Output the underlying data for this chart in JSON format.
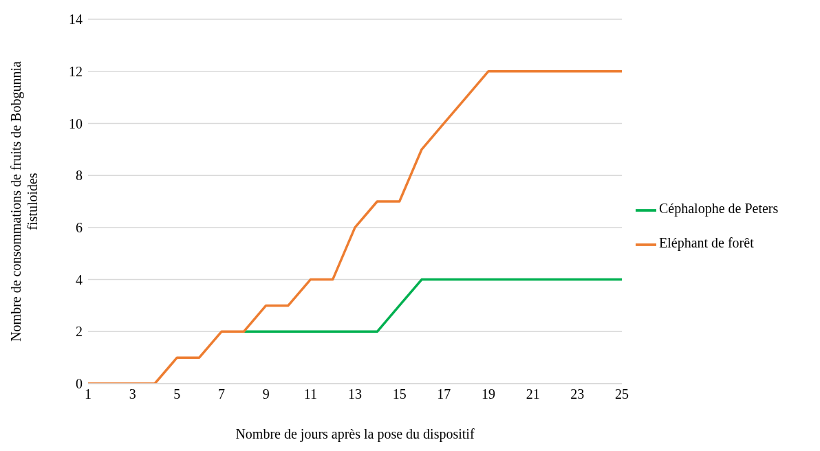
{
  "chart_data": {
    "type": "line",
    "xlabel": "Nombre de jours après la pose du dispositif",
    "ylabel": "Nombre de consommations de fruits de Bobgunnia fistuloides",
    "x": [
      1,
      2,
      3,
      4,
      5,
      6,
      7,
      8,
      9,
      10,
      11,
      12,
      13,
      14,
      15,
      16,
      17,
      18,
      19,
      20,
      21,
      22,
      23,
      24,
      25
    ],
    "series": [
      {
        "name": "Céphalophe de Peters",
        "color": "#00b050",
        "values": [
          null,
          null,
          null,
          null,
          null,
          null,
          null,
          2,
          2,
          2,
          2,
          2,
          2,
          2,
          3,
          4,
          4,
          4,
          4,
          4,
          4,
          4,
          4,
          4,
          4
        ]
      },
      {
        "name": "Eléphant de forêt",
        "color": "#ed7d31",
        "values": [
          0,
          0,
          0,
          0,
          1,
          1,
          2,
          2,
          3,
          3,
          4,
          4,
          6,
          7,
          7,
          9,
          10,
          11,
          12,
          12,
          12,
          12,
          12,
          12,
          12
        ]
      }
    ],
    "xlim": [
      1,
      25
    ],
    "xticks": [
      1,
      3,
      5,
      7,
      9,
      11,
      13,
      15,
      17,
      19,
      21,
      23,
      25
    ],
    "ylim": [
      0,
      14
    ],
    "yticks": [
      0,
      2,
      4,
      6,
      8,
      10,
      12,
      14
    ],
    "grid": "y",
    "legend": "right",
    "marker": "none",
    "line_style": "solid"
  }
}
